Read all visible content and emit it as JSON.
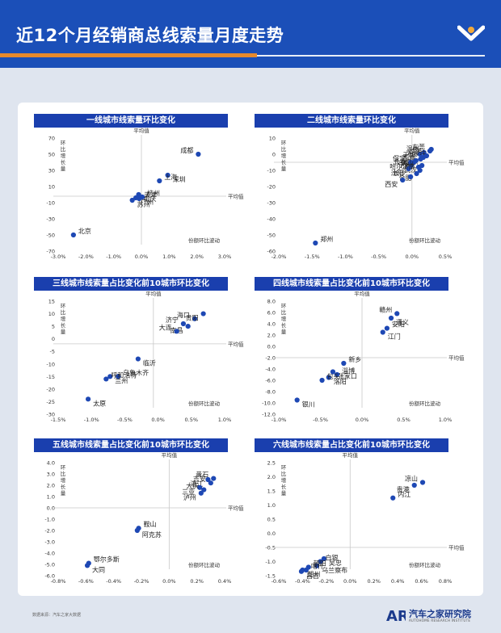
{
  "header": {
    "title": "近12个月经销商总线索量月度走势"
  },
  "footer": {
    "source": "数据来源：汽车之家大数据",
    "brand_name": "汽车之家研究院",
    "brand_sub": "AUTOHOME RESEARCH INSTITUTE",
    "brand_mark": "AR"
  },
  "chart_data": [
    {
      "type": "scatter",
      "title": "一线城市线索量环比变化",
      "xlabel": "份额环比波动",
      "ylabel": "环比增长量",
      "mean_x_label": "平均值",
      "mean_y_label": "平均值",
      "xlim": [
        -0.03,
        0.03
      ],
      "ylim": [
        -70,
        70
      ],
      "xticks": [
        -0.03,
        -0.02,
        -0.01,
        0,
        0.01,
        0.02,
        0.03
      ],
      "yticks": [
        -70,
        -50,
        -30,
        -10,
        10,
        30,
        50,
        70
      ],
      "xtick_labels": [
        "-3.0%",
        "-2.0%",
        "-1.0%",
        "0.0%",
        "1.0%",
        "2.0%",
        "3.0%"
      ],
      "ytick_labels": [
        "-70",
        "-50",
        "-30",
        "-10",
        "10",
        "30",
        "50",
        "70"
      ],
      "mean_x": 0.0,
      "mean_y": -2,
      "points": [
        {
          "name": "成都",
          "x": 0.0205,
          "y": 50
        },
        {
          "name": "深圳",
          "x": 0.0095,
          "y": 24
        },
        {
          "name": "上海",
          "x": 0.0065,
          "y": 17
        },
        {
          "name": "重庆",
          "x": -0.001,
          "y": 0
        },
        {
          "name": "杭州",
          "x": 0.0003,
          "y": -3
        },
        {
          "name": "广州",
          "x": -0.002,
          "y": -4
        },
        {
          "name": "天津",
          "x": -0.0008,
          "y": -5
        },
        {
          "name": "苏州",
          "x": -0.0033,
          "y": -7
        },
        {
          "name": "北京",
          "x": -0.0245,
          "y": -50
        }
      ]
    },
    {
      "type": "scatter",
      "title": "二线城市线索量环比变化",
      "xlabel": "份额环比波动",
      "ylabel": "环比增长量",
      "mean_x_label": "平均值",
      "mean_y_label": "平均值",
      "xlim": [
        -0.02,
        0.005
      ],
      "ylim": [
        -60,
        10
      ],
      "xticks": [
        -0.02,
        -0.015,
        -0.01,
        -0.005,
        0,
        0.005
      ],
      "yticks": [
        -60,
        -50,
        -40,
        -30,
        -20,
        -10,
        0,
        10
      ],
      "xtick_labels": [
        "-2.0%",
        "-1.5%",
        "-1.0%",
        "-0.5%",
        "0.0%",
        "0.5%"
      ],
      "ytick_labels": [
        "-60",
        "-50",
        "-40",
        "-30",
        "-20",
        "-10",
        "0",
        "10"
      ],
      "mean_x": 0.0,
      "mean_y": -5,
      "points": [
        {
          "name": "温州",
          "x": 0.0018,
          "y": 1
        },
        {
          "name": "石家庄",
          "x": 0.0029,
          "y": 3
        },
        {
          "name": "东莞",
          "x": 0.0027,
          "y": 2
        },
        {
          "name": "青岛",
          "x": 0.0012,
          "y": 0
        },
        {
          "name": "昆明",
          "x": 0.0022,
          "y": -1
        },
        {
          "name": "南京",
          "x": 0.0017,
          "y": -2
        },
        {
          "name": "无锡",
          "x": 0.0013,
          "y": -3
        },
        {
          "name": "宁波",
          "x": 0.0006,
          "y": -4
        },
        {
          "name": "保定",
          "x": -0.0002,
          "y": -5
        },
        {
          "name": "哈尔滨",
          "x": 0.0003,
          "y": -5
        },
        {
          "name": "长春",
          "x": -0.0001,
          "y": -7
        },
        {
          "name": "武汉",
          "x": 0.0015,
          "y": -7
        },
        {
          "name": "佛山",
          "x": 0.001,
          "y": -8
        },
        {
          "name": "沈阳",
          "x": -0.0005,
          "y": -9
        },
        {
          "name": "济南",
          "x": 0.0012,
          "y": -10
        },
        {
          "name": "合肥",
          "x": 0.0007,
          "y": -12
        },
        {
          "name": "长沙",
          "x": -0.0002,
          "y": -14
        },
        {
          "name": "西安",
          "x": -0.0014,
          "y": -16
        },
        {
          "name": "郑州",
          "x": -0.0145,
          "y": -55
        }
      ]
    },
    {
      "type": "scatter",
      "title": "三线城市线索量占比变化前10城市环比变化",
      "xlabel": "份额环比波动",
      "ylabel": "环比增长量",
      "mean_x_label": "平均值",
      "mean_y_label": "平均值",
      "xlim": [
        -0.015,
        0.01
      ],
      "ylim": [
        -30,
        15
      ],
      "xticks": [
        -0.015,
        -0.01,
        -0.005,
        0,
        0.005,
        0.01
      ],
      "yticks": [
        -30,
        -25,
        -20,
        -15,
        -10,
        -5,
        0,
        5,
        10,
        15
      ],
      "xtick_labels": [
        "-1.5%",
        "-1.0%",
        "-0.5%",
        "0.0%",
        "0.5%",
        "1.0%"
      ],
      "ytick_labels": [
        "-30",
        "-25",
        "-20",
        "-15",
        "-10",
        "-5",
        "0",
        "5",
        "10",
        "15"
      ],
      "mean_x": -0.0007,
      "mean_y": -2,
      "points": [
        {
          "name": "海口",
          "x": 0.0055,
          "y": 8
        },
        {
          "name": "贵阳",
          "x": 0.0068,
          "y": 10
        },
        {
          "name": "济宁",
          "x": 0.0038,
          "y": 6
        },
        {
          "name": "南昌",
          "x": 0.0045,
          "y": 5
        },
        {
          "name": "大连",
          "x": 0.0028,
          "y": 3
        },
        {
          "name": "临沂",
          "x": -0.003,
          "y": -8
        },
        {
          "name": "乌鲁木齐",
          "x": -0.006,
          "y": -15
        },
        {
          "name": "兰州",
          "x": -0.0072,
          "y": -15
        },
        {
          "name": "呼和浩特",
          "x": -0.0078,
          "y": -16
        },
        {
          "name": "太原",
          "x": -0.0105,
          "y": -24
        }
      ]
    },
    {
      "type": "scatter",
      "title": "四线城市线索量占比变化前10城市环比变化",
      "xlabel": "份额环比波动",
      "ylabel": "环比增长量",
      "mean_x_label": "平均值",
      "mean_y_label": "平均值",
      "xlim": [
        -0.01,
        0.01
      ],
      "ylim": [
        -12,
        8
      ],
      "xticks": [
        -0.01,
        -0.005,
        0,
        0.005,
        0.01
      ],
      "yticks": [
        -12,
        -10,
        -8,
        -6,
        -4,
        -2,
        0,
        2,
        4,
        6,
        8
      ],
      "xtick_labels": [
        "-1.0%",
        "-0.5%",
        "0.0%",
        "0.5%",
        "1.0%"
      ],
      "ytick_labels": [
        "-12.0",
        "-10.0",
        "-8.0",
        "-6.0",
        "-4.0",
        "-2.0",
        "0.0",
        "2.0",
        "4.0",
        "6.0",
        "8.0"
      ],
      "mean_x": 0.0,
      "mean_y": -2,
      "points": [
        {
          "name": "赣州",
          "x": 0.0042,
          "y": 5.8
        },
        {
          "name": "遵义",
          "x": 0.0035,
          "y": 5
        },
        {
          "name": "安阳",
          "x": 0.003,
          "y": 3.2
        },
        {
          "name": "江门",
          "x": 0.0025,
          "y": 2.5
        },
        {
          "name": "新乡",
          "x": -0.0022,
          "y": -3
        },
        {
          "name": "张家口",
          "x": -0.0035,
          "y": -4.5
        },
        {
          "name": "淄博",
          "x": -0.003,
          "y": -5
        },
        {
          "name": "洛阳",
          "x": -0.004,
          "y": -5.5
        },
        {
          "name": "包头",
          "x": -0.0048,
          "y": -6
        },
        {
          "name": "银川",
          "x": -0.0078,
          "y": -9.5
        }
      ]
    },
    {
      "type": "scatter",
      "title": "五线城市线索量占比变化前10城市环比变化",
      "xlabel": "份额环比波动",
      "ylabel": "环比增长量",
      "mean_x_label": "平均值",
      "mean_y_label": "平均值",
      "xlim": [
        -0.008,
        0.004
      ],
      "ylim": [
        -6,
        4
      ],
      "xticks": [
        -0.008,
        -0.006,
        -0.004,
        -0.002,
        0,
        0.002,
        0.004
      ],
      "yticks": [
        -6,
        -5,
        -4,
        -3,
        -2,
        -1,
        0,
        1,
        2,
        3,
        4
      ],
      "xtick_labels": [
        "-0.8%",
        "-0.6%",
        "-0.4%",
        "-0.2%",
        "0.0%",
        "0.2%",
        "0.4%"
      ],
      "ytick_labels": [
        "-6.0",
        "-5.0",
        "-4.0",
        "-3.0",
        "-2.0",
        "-1.0",
        "0.0",
        "1.0",
        "2.0",
        "3.0",
        "4.0"
      ],
      "mean_x": 0.0,
      "mean_y": 0.0,
      "points": [
        {
          "name": "黄石",
          "x": 0.0032,
          "y": 2.6
        },
        {
          "name": "湛江",
          "x": 0.0028,
          "y": 2.5
        },
        {
          "name": "吉安",
          "x": 0.003,
          "y": 2.2
        },
        {
          "name": "三亚",
          "x": 0.0022,
          "y": 1.8
        },
        {
          "name": "大庆",
          "x": 0.0025,
          "y": 1.6
        },
        {
          "name": "泸州",
          "x": 0.0023,
          "y": 1.3
        },
        {
          "name": "鞍山",
          "x": -0.0022,
          "y": -1.8
        },
        {
          "name": "阿克苏",
          "x": -0.0023,
          "y": -2.0
        },
        {
          "name": "鄂尔多斯",
          "x": -0.0058,
          "y": -4.9
        },
        {
          "name": "大同",
          "x": -0.0059,
          "y": -5.1
        }
      ]
    },
    {
      "type": "scatter",
      "title": "六线城市线索量占比变化前10城市环比变化",
      "xlabel": "份额环比波动",
      "ylabel": "环比增长量",
      "mean_x_label": "平均值",
      "mean_y_label": "平均值",
      "xlim": [
        -0.006,
        0.008
      ],
      "ylim": [
        -1.5,
        2.5
      ],
      "xticks": [
        -0.006,
        -0.004,
        -0.002,
        0,
        0.002,
        0.004,
        0.006,
        0.008
      ],
      "yticks": [
        -1.5,
        -1.0,
        -0.5,
        0,
        0.5,
        1.0,
        1.5,
        2.0,
        2.5
      ],
      "xtick_labels": [
        "-0.6%",
        "-0.4%",
        "-0.2%",
        "0.0%",
        "0.2%",
        "0.4%",
        "0.6%",
        "0.8%"
      ],
      "ytick_labels": [
        "-1.5",
        "-1.0",
        "-0.5",
        "0.0",
        "0.5",
        "1.0",
        "1.5",
        "2.0",
        "2.5"
      ],
      "mean_x": 0.0,
      "mean_y": -0.5,
      "points": [
        {
          "name": "凉山",
          "x": 0.0061,
          "y": 1.8
        },
        {
          "name": "贵港",
          "x": 0.0054,
          "y": 1.7
        },
        {
          "name": "内江",
          "x": 0.0036,
          "y": 1.25
        },
        {
          "name": "吴忠",
          "x": -0.0022,
          "y": -0.9
        },
        {
          "name": "白银",
          "x": -0.0025,
          "y": -1.0
        },
        {
          "name": "乌兰察布",
          "x": -0.0028,
          "y": -1.15
        },
        {
          "name": "朝阳",
          "x": -0.0035,
          "y": -1.2
        },
        {
          "name": "朔州",
          "x": -0.004,
          "y": -1.3
        },
        {
          "name": "喀什",
          "x": -0.0037,
          "y": -1.3
        },
        {
          "name": "昌吉",
          "x": -0.0041,
          "y": -1.35
        }
      ]
    }
  ]
}
